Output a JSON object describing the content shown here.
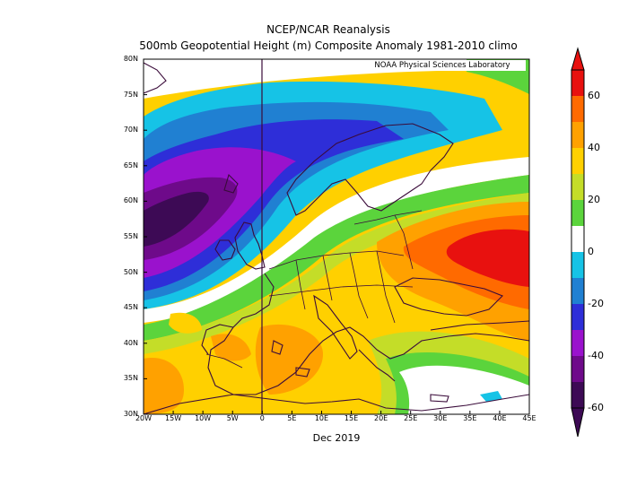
{
  "title": {
    "line1": "NCEP/NCAR Reanalysis",
    "line2": "500mb Geopotential Height (m) Composite Anomaly 1981-2010 climo"
  },
  "credit": "NOAA Physical Sciences Laboratory",
  "xlabel": "Dec 2019",
  "map": {
    "lat_labels": [
      "80N",
      "75N",
      "70N",
      "65N",
      "60N",
      "55N",
      "50N",
      "45N",
      "40N",
      "35N",
      "30N"
    ],
    "lon_labels": [
      "20W",
      "15W",
      "10W",
      "5W",
      "0",
      "5E",
      "10E",
      "15E",
      "20E",
      "25E",
      "30E",
      "35E",
      "40E",
      "45E"
    ],
    "extent": {
      "lon": [
        -20,
        45
      ],
      "lat": [
        30,
        80
      ]
    }
  },
  "colorbar": {
    "labels": [
      "60",
      "40",
      "20",
      "0",
      "-20",
      "-40",
      "-60"
    ],
    "colors": [
      "#e8110f",
      "#ff6a00",
      "#ffa100",
      "#ffd000",
      "#c4dd28",
      "#5bd43c",
      "#ffffff",
      "#16c3e6",
      "#2080d2",
      "#2e2ed8",
      "#9a12cd",
      "#6e0a8a",
      "#3d0a55"
    ]
  }
}
